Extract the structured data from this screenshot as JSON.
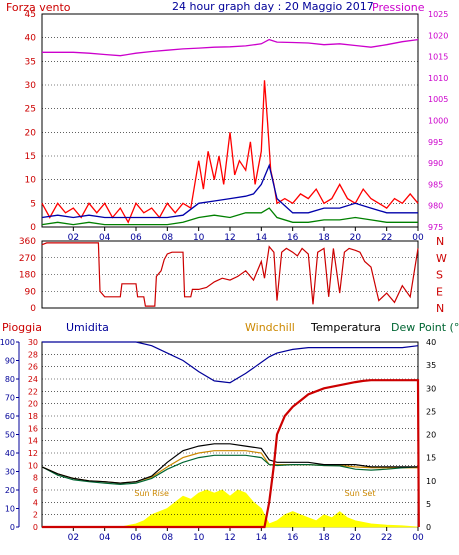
{
  "title": "24 hour graph day : 20 Maggio 2017",
  "colors": {
    "wind_gust": "#ff0000",
    "wind_avg": "#0000aa",
    "wind_min": "#008000",
    "pressure": "#cc00cc",
    "direction": "#cc0000",
    "rain": "#cc0000",
    "humidity": "#000099",
    "windchill": "#cc8800",
    "temperature": "#000000",
    "dewpoint": "#006633",
    "solar": "#ffff00"
  },
  "chart_data": [
    {
      "type": "line",
      "name": "wind-pressure",
      "left_axis_label": "Forza vento",
      "right_axis_label": "Pressione",
      "y_left": {
        "min": 0,
        "max": 45,
        "ticks": [
          "0",
          "5",
          "10",
          "15",
          "20",
          "25",
          "30",
          "35",
          "40",
          "45"
        ]
      },
      "y_right": {
        "min": 975,
        "max": 1025,
        "ticks": [
          "975",
          "980",
          "985",
          "990",
          "995",
          "1000",
          "1005",
          "1010",
          "1015",
          "1020",
          "1025"
        ]
      },
      "x_ticks": [
        "02",
        "04",
        "06",
        "08",
        "10",
        "12",
        "14",
        "16",
        "18",
        "20",
        "22",
        "00"
      ],
      "pressure": {
        "x": [
          0,
          1,
          2,
          3,
          4,
          5,
          6,
          7,
          8,
          9,
          10,
          11,
          12,
          13,
          14,
          14.5,
          15,
          16,
          17,
          18,
          19,
          20,
          21,
          22,
          23,
          24
        ],
        "y": [
          1016,
          1016,
          1016,
          1015.8,
          1015.5,
          1015.2,
          1015.8,
          1016.2,
          1016.5,
          1016.8,
          1017,
          1017.2,
          1017.3,
          1017.5,
          1018,
          1019,
          1018.4,
          1018.3,
          1018.2,
          1017.8,
          1018,
          1017.6,
          1017.2,
          1017.8,
          1018.5,
          1019
        ]
      },
      "gust": {
        "x": [
          0,
          0.5,
          1,
          1.5,
          2,
          2.5,
          3,
          3.5,
          4,
          4.5,
          5,
          5.5,
          6,
          6.5,
          7,
          7.5,
          8,
          8.5,
          9,
          9.5,
          10,
          10.3,
          10.6,
          11,
          11.3,
          11.6,
          12,
          12.3,
          12.6,
          13,
          13.3,
          13.6,
          14,
          14.2,
          14.4,
          14.6,
          14.8,
          15,
          15.5,
          16,
          16.5,
          17,
          17.5,
          18,
          18.5,
          19,
          19.5,
          20,
          20.5,
          21,
          21.5,
          22,
          22.5,
          23,
          23.5,
          24
        ],
        "y": [
          5,
          2,
          5,
          3,
          4,
          2,
          5,
          3,
          5,
          2,
          4,
          1,
          5,
          3,
          4,
          2,
          5,
          3,
          5,
          4,
          14,
          8,
          16,
          10,
          15,
          9,
          20,
          11,
          14,
          12,
          18,
          9,
          16,
          31,
          22,
          12,
          9,
          5,
          6,
          5,
          7,
          6,
          8,
          5,
          6,
          9,
          6,
          5,
          8,
          6,
          5,
          4,
          6,
          5,
          7,
          5
        ]
      },
      "average": {
        "x": [
          0,
          1,
          2,
          3,
          4,
          5,
          6,
          7,
          8,
          9,
          10,
          11,
          12,
          13,
          13.5,
          14,
          14.5,
          15,
          16,
          17,
          18,
          19,
          20,
          21,
          22,
          23,
          24
        ],
        "y": [
          2,
          2.5,
          2,
          2.5,
          2,
          2,
          2,
          2,
          2,
          2.5,
          5,
          5.5,
          6,
          6.5,
          7,
          9,
          13,
          6,
          3,
          3,
          4,
          4,
          5,
          4,
          3,
          3,
          3
        ]
      },
      "minimum": {
        "x": [
          0,
          1,
          2,
          3,
          4,
          5,
          6,
          7,
          8,
          9,
          10,
          11,
          12,
          13,
          14,
          14.5,
          15,
          16,
          17,
          18,
          19,
          20,
          21,
          22,
          23,
          24
        ],
        "y": [
          0.5,
          1,
          0.5,
          1,
          0.5,
          0.5,
          0.5,
          0.5,
          0.5,
          1,
          2,
          2.5,
          2,
          3,
          3,
          4,
          2,
          1,
          1,
          1.5,
          1.5,
          2,
          1.5,
          1,
          1,
          1
        ]
      }
    },
    {
      "type": "line",
      "name": "wind-direction",
      "y_left": {
        "min": 0,
        "max": 360,
        "ticks": [
          "0",
          "90",
          "180",
          "270",
          "360"
        ]
      },
      "y_right_labels": [
        "N",
        "W",
        "S",
        "E",
        "N"
      ],
      "x": [
        0,
        0.3,
        3.6,
        3.7,
        4,
        4.1,
        5,
        5.1,
        6,
        6.1,
        6.5,
        6.6,
        7.2,
        7.3,
        7.6,
        7.8,
        8,
        8.3,
        8.6,
        9,
        9.1,
        9.5,
        9.6,
        10,
        10.5,
        11,
        11.5,
        12,
        12.5,
        13,
        13.5,
        14,
        14.2,
        14.5,
        14.8,
        15,
        15.3,
        15.6,
        16,
        16.3,
        16.6,
        17,
        17.3,
        17.6,
        18,
        18.3,
        18.6,
        19,
        19.3,
        19.6,
        20,
        20.3,
        20.6,
        21,
        21.5,
        22,
        22.5,
        23,
        23.5,
        24
      ],
      "y": [
        340,
        350,
        350,
        90,
        60,
        60,
        60,
        130,
        130,
        60,
        60,
        10,
        10,
        170,
        200,
        260,
        290,
        300,
        300,
        300,
        60,
        60,
        100,
        100,
        110,
        140,
        160,
        150,
        170,
        200,
        150,
        250,
        160,
        330,
        300,
        40,
        300,
        320,
        300,
        280,
        320,
        290,
        20,
        300,
        320,
        60,
        320,
        80,
        300,
        320,
        310,
        300,
        250,
        220,
        40,
        80,
        30,
        120,
        60,
        320
      ]
    },
    {
      "type": "line",
      "name": "temperature-humidity-rain",
      "legend": [
        "Pioggia",
        "Umidita",
        "Windchill",
        "Temperatura",
        "Dew Point (°C"
      ],
      "y_rain": {
        "min": 0,
        "max": 30,
        "ticks": [
          "0",
          "2",
          "4",
          "6",
          "8",
          "10",
          "12",
          "14",
          "16",
          "18",
          "20",
          "22",
          "24",
          "26",
          "28",
          "30"
        ]
      },
      "y_humidity": {
        "min": 0,
        "max": 100,
        "ticks": [
          "0",
          "10",
          "20",
          "30",
          "40",
          "50",
          "60",
          "70",
          "80",
          "90",
          "100"
        ]
      },
      "y_temperature": {
        "min": 0,
        "max": 40,
        "ticks": [
          "0",
          "5",
          "10",
          "15",
          "20",
          "25",
          "30",
          "35",
          "40"
        ]
      },
      "annotations": [
        "Sun Rise",
        "Sun Set"
      ],
      "temperature": {
        "x": [
          0,
          1,
          2,
          3,
          4,
          5,
          6,
          7,
          8,
          9,
          10,
          11,
          12,
          13,
          14,
          14.5,
          15,
          16,
          17,
          18,
          19,
          20,
          21,
          22,
          23,
          24
        ],
        "y": [
          13,
          11.5,
          10.5,
          10,
          9.8,
          9.5,
          9.8,
          11,
          14,
          16.5,
          17.5,
          18,
          18,
          17.5,
          17,
          14.5,
          14,
          14,
          14,
          13.5,
          13.5,
          13.5,
          13,
          13,
          13,
          13
        ]
      },
      "windchill": {
        "x": [
          0,
          1,
          2,
          3,
          4,
          5,
          6,
          7,
          8,
          9,
          10,
          11,
          12,
          13,
          14,
          14.5,
          15,
          16,
          17,
          18,
          19,
          20,
          21,
          22,
          23,
          24
        ],
        "y": [
          13,
          11.5,
          10.5,
          10,
          9.8,
          9.5,
          9.8,
          10.8,
          13,
          15,
          16,
          16.5,
          16.5,
          16.5,
          16,
          13.5,
          13.5,
          13.5,
          13.5,
          13.3,
          13.3,
          13,
          12.8,
          12.8,
          12.8,
          12.8
        ]
      },
      "dewpoint": {
        "x": [
          0,
          1,
          2,
          3,
          4,
          5,
          6,
          7,
          8,
          9,
          10,
          11,
          12,
          13,
          14,
          14.5,
          15,
          16,
          17,
          18,
          19,
          20,
          21,
          22,
          23,
          24
        ],
        "y": [
          13,
          11.2,
          10.2,
          9.8,
          9.5,
          9.2,
          9.5,
          10.5,
          12.5,
          14,
          15,
          15.5,
          15.5,
          15.5,
          15,
          13.5,
          13.3,
          13.5,
          13.5,
          13.3,
          13.2,
          12.5,
          12.3,
          12.5,
          12.8,
          13
        ]
      },
      "humidity": {
        "x": [
          0,
          1,
          2,
          3,
          4,
          5,
          6,
          7,
          8,
          9,
          10,
          11,
          12,
          13,
          14,
          14.5,
          15,
          16,
          17,
          18,
          19,
          20,
          21,
          22,
          23,
          24
        ],
        "y": [
          100,
          100,
          100,
          100,
          100,
          100,
          100,
          98,
          94,
          90,
          84,
          79,
          78,
          83,
          89,
          92,
          94,
          96,
          97,
          97,
          97,
          97,
          97,
          97,
          97,
          98
        ]
      },
      "rain": {
        "x": [
          0,
          14.2,
          14.5,
          14.8,
          15,
          15.5,
          16,
          16.5,
          17,
          18,
          19,
          20,
          20.5,
          21,
          22,
          23,
          24,
          24.05
        ],
        "y": [
          0,
          0,
          4,
          10,
          15,
          18,
          19.5,
          20.5,
          21.5,
          22.5,
          23,
          23.5,
          23.7,
          23.8,
          23.8,
          23.8,
          23.8,
          0
        ]
      },
      "solar": {
        "x": [
          5,
          6,
          6.5,
          7,
          8,
          8.5,
          9,
          9.5,
          10,
          10.5,
          11,
          11.5,
          12,
          12.5,
          13,
          13.5,
          14,
          14.5,
          15,
          15.5,
          16,
          16.5,
          17,
          17.5,
          18,
          18.5,
          19,
          19.5,
          20,
          21,
          22,
          23,
          24
        ],
        "y": [
          0,
          0.5,
          1,
          2,
          3,
          4,
          5,
          4.5,
          5.5,
          6,
          5.5,
          6,
          5,
          6,
          5.5,
          4,
          3,
          0.5,
          1,
          2,
          2.5,
          2,
          1.5,
          1,
          2,
          1.5,
          2.5,
          1.5,
          1,
          0.5,
          0.3,
          0.2,
          0
        ]
      }
    }
  ]
}
